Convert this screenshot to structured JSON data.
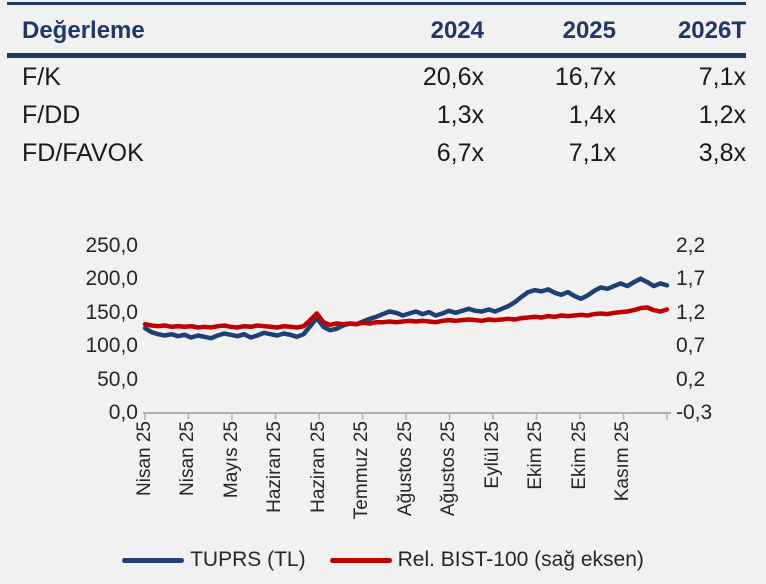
{
  "table": {
    "header": {
      "label": "Değerleme",
      "cols": [
        "2024",
        "2025",
        "2026T"
      ]
    },
    "rows": [
      {
        "label": "F/K",
        "values": [
          "20,6x",
          "16,7x",
          "7,1x"
        ]
      },
      {
        "label": "F/DD",
        "values": [
          "1,3x",
          "1,4x",
          "1,2x"
        ]
      },
      {
        "label": "FD/FAVOK",
        "values": [
          "6,7x",
          "7,1x",
          "3,8x"
        ]
      }
    ]
  },
  "chart_data": {
    "type": "line",
    "title": "",
    "grid": false,
    "legend_position": "bottom",
    "x_labels": [
      "Nisan 25",
      "Nisan 25",
      "Mayıs 25",
      "Haziran 25",
      "Haziran 25",
      "Temmuz 25",
      "Ağustos 25",
      "Ağustos 25",
      "Eylül 25",
      "Ekim 25",
      "Ekim 25",
      "Kasım 25"
    ],
    "left_axis": {
      "ticks": [
        "250,0",
        "200,0",
        "150,0",
        "100,0",
        "50,0",
        "0,0"
      ],
      "min": 0,
      "max": 250
    },
    "right_axis": {
      "ticks": [
        "2,2",
        "1,7",
        "1,2",
        "0,7",
        "0,2",
        "-0,3"
      ],
      "min": -0.3,
      "max": 2.2
    },
    "series": [
      {
        "name": "TUPRS (TL)",
        "axis": "left",
        "color": "#1F4077",
        "values": [
          127,
          121,
          118,
          116,
          118,
          115,
          117,
          113,
          116,
          114,
          112,
          116,
          119,
          117,
          115,
          118,
          113,
          116,
          120,
          118,
          116,
          119,
          117,
          114,
          118,
          130,
          142,
          129,
          124,
          126,
          131,
          134,
          133,
          137,
          141,
          144,
          148,
          152,
          150,
          146,
          149,
          152,
          148,
          151,
          146,
          149,
          153,
          150,
          153,
          156,
          153,
          152,
          155,
          152,
          156,
          160,
          166,
          174,
          181,
          184,
          182,
          185,
          180,
          177,
          181,
          175,
          171,
          176,
          183,
          188,
          186,
          190,
          194,
          190,
          196,
          201,
          196,
          190,
          194,
          191
        ]
      },
      {
        "name": "Rel. BIST-100 (sağ eksen)",
        "axis": "right",
        "color": "#C00000",
        "values": [
          1.03,
          1.01,
          1.0,
          1.01,
          0.99,
          1.0,
          0.99,
          1.0,
          0.98,
          0.99,
          0.98,
          1.0,
          1.01,
          0.99,
          0.98,
          1.0,
          0.99,
          1.01,
          1.0,
          0.99,
          0.98,
          1.0,
          0.99,
          0.98,
          1.0,
          1.09,
          1.19,
          1.06,
          1.02,
          1.04,
          1.03,
          1.04,
          1.03,
          1.05,
          1.04,
          1.06,
          1.06,
          1.07,
          1.06,
          1.07,
          1.08,
          1.07,
          1.08,
          1.07,
          1.06,
          1.08,
          1.09,
          1.08,
          1.09,
          1.1,
          1.09,
          1.08,
          1.1,
          1.09,
          1.1,
          1.11,
          1.1,
          1.12,
          1.13,
          1.14,
          1.13,
          1.15,
          1.14,
          1.16,
          1.15,
          1.16,
          1.17,
          1.16,
          1.18,
          1.19,
          1.18,
          1.2,
          1.21,
          1.22,
          1.24,
          1.27,
          1.28,
          1.24,
          1.22,
          1.25
        ]
      }
    ]
  },
  "colors": {
    "navy": "#1F3864",
    "background": "#F1F1F1",
    "axis_gray": "#B0B0B0",
    "text_dark": "#262626"
  }
}
